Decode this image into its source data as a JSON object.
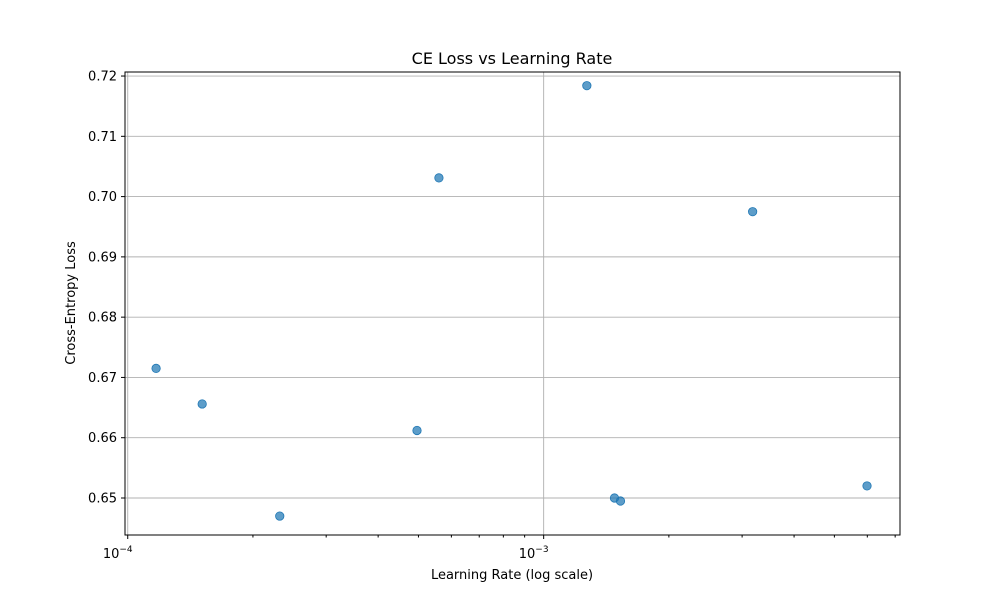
{
  "chart_data": {
    "type": "scatter",
    "title": "CE Loss vs Learning Rate",
    "xlabel": "Learning Rate (log scale)",
    "ylabel": "Cross-Entropy Loss",
    "x_scale": "log",
    "xlim": [
      9.85e-05,
      0.00719
    ],
    "ylim": [
      0.64386,
      0.72067
    ],
    "grid": true,
    "marker_color": "#1f77b4",
    "x_major_ticks": [
      {
        "value": 0.0001,
        "label_base": "10",
        "label_exp": "−4"
      },
      {
        "value": 0.001,
        "label_base": "10",
        "label_exp": "−3"
      }
    ],
    "x_minor_ticks": [
      0.0002,
      0.0003,
      0.0004,
      0.0005,
      0.0006,
      0.0007,
      0.0008,
      0.0009,
      0.002,
      0.003,
      0.004,
      0.005,
      0.006,
      0.007
    ],
    "y_ticks": [
      {
        "value": 0.65,
        "label": "0.65"
      },
      {
        "value": 0.66,
        "label": "0.66"
      },
      {
        "value": 0.67,
        "label": "0.67"
      },
      {
        "value": 0.68,
        "label": "0.68"
      },
      {
        "value": 0.69,
        "label": "0.69"
      },
      {
        "value": 0.7,
        "label": "0.70"
      },
      {
        "value": 0.71,
        "label": "0.71"
      },
      {
        "value": 0.72,
        "label": "0.72"
      }
    ],
    "points": [
      {
        "x": 0.000117,
        "y": 0.6715
      },
      {
        "x": 0.000151,
        "y": 0.6656
      },
      {
        "x": 0.000232,
        "y": 0.647
      },
      {
        "x": 0.000496,
        "y": 0.6612
      },
      {
        "x": 0.00056,
        "y": 0.7031
      },
      {
        "x": 0.00127,
        "y": 0.7184
      },
      {
        "x": 0.00148,
        "y": 0.65
      },
      {
        "x": 0.00153,
        "y": 0.6495
      },
      {
        "x": 0.00318,
        "y": 0.6975
      },
      {
        "x": 0.00599,
        "y": 0.652
      }
    ]
  }
}
